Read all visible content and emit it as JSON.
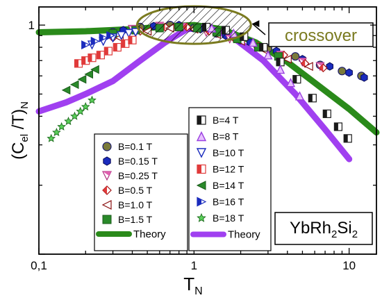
{
  "chart_data": {
    "type": "scatter",
    "xlabel": "T",
    "xlabel_sub": "N",
    "ylabel_parts": [
      "(C",
      "el",
      " /T)",
      "N"
    ],
    "x_scale": "log",
    "y_scale": "log",
    "xlim": [
      0.1,
      15
    ],
    "ylim": [
      0.1,
      1.2
    ],
    "x_ticks": [
      {
        "value": 0.1,
        "label": "0,1"
      },
      {
        "value": 1,
        "label": "1"
      },
      {
        "value": 10,
        "label": "10"
      }
    ],
    "y_ticks": [
      {
        "value": 1,
        "label": "1"
      }
    ],
    "annotation": {
      "text": "crossover",
      "color": "#7a7a1f"
    },
    "compound": {
      "parts": [
        "YbRh",
        "2",
        "Si",
        "2"
      ]
    },
    "legend_left": {
      "entries": [
        "B=0.1 T",
        "B=0.15 T",
        "B=0.25 T",
        "B=0.5 T",
        "B=1.0 T",
        "B=1.5 T"
      ],
      "theory_label": "Theory"
    },
    "legend_right": {
      "entries": [
        "B=4 T",
        "B=8 T",
        "B=10 T",
        "B=12 T",
        "B=14 T",
        "B=16 T",
        "B=18 T"
      ],
      "theory_label": "Theory"
    },
    "series": [
      {
        "name": "B=0.1 T",
        "marker": "circle",
        "color": "#7a7a3a",
        "stroke": "#1a1a6e",
        "x": [
          0.3,
          0.45,
          0.7,
          1.0,
          1.4,
          2.0,
          3.0,
          4.5,
          6.5,
          9.0,
          12.0
        ],
        "y": [
          0.93,
          0.98,
          1.0,
          0.97,
          0.92,
          0.86,
          0.79,
          0.73,
          0.67,
          0.63,
          0.6
        ]
      },
      {
        "name": "B=0.15 T",
        "marker": "hexagon",
        "color": "#1a2bbd",
        "stroke": "#0a0a55",
        "x": [
          0.35,
          0.55,
          0.8,
          1.1,
          1.6,
          2.3,
          3.4,
          5.0,
          7.5,
          10.0,
          12.5
        ],
        "y": [
          0.95,
          0.99,
          1.0,
          0.96,
          0.9,
          0.84,
          0.77,
          0.71,
          0.66,
          0.62,
          0.59
        ]
      },
      {
        "name": "B=0.25 T",
        "marker": "triangle-down-split",
        "color": "#e060b0",
        "stroke": "#b03080",
        "x": [
          0.4,
          0.6,
          0.85,
          1.2,
          1.7,
          2.5,
          3.6,
          5.0,
          6.5
        ],
        "y": [
          0.96,
          0.99,
          0.98,
          0.93,
          0.87,
          0.8,
          0.74,
          0.69,
          0.66
        ]
      },
      {
        "name": "B=0.5 T",
        "marker": "diamond-split",
        "color": "#e03a3a",
        "stroke": "#a01010",
        "x": [
          0.3,
          0.45,
          0.65,
          0.9,
          1.25,
          1.8,
          2.6,
          3.8,
          5.2,
          6.8
        ],
        "y": [
          0.88,
          0.94,
          0.98,
          0.98,
          0.94,
          0.88,
          0.81,
          0.74,
          0.68,
          0.65
        ]
      },
      {
        "name": "B=1.0 T",
        "marker": "triangle-left-open",
        "color": "#ffffff",
        "stroke": "#8a1010",
        "x": [
          0.33,
          0.5,
          0.7,
          1.0,
          1.4,
          2.0,
          2.8,
          4.0,
          5.5
        ],
        "y": [
          0.88,
          0.94,
          0.97,
          0.96,
          0.91,
          0.85,
          0.78,
          0.71,
          0.66
        ]
      },
      {
        "name": "B=1.5 T",
        "marker": "square",
        "color": "#2a8a2a",
        "stroke": "#1a5a1a",
        "x": [
          0.3,
          0.42,
          0.6,
          0.8,
          1.05,
          1.4,
          1.9,
          2.6,
          3.5
        ],
        "y": [
          0.92,
          0.95,
          0.97,
          0.98,
          0.97,
          0.93,
          0.87,
          0.8,
          0.73
        ]
      },
      {
        "name": "B=4 T",
        "marker": "square-split",
        "color": "#1a1a1a",
        "stroke": "#1a1a1a",
        "x": [
          1.2,
          1.6,
          2.1,
          2.8,
          3.6,
          4.6,
          5.8,
          7.2,
          8.5,
          9.8
        ],
        "y": [
          0.98,
          0.95,
          0.89,
          0.8,
          0.69,
          0.58,
          0.48,
          0.41,
          0.36,
          0.32
        ]
      },
      {
        "name": "B=8 T",
        "marker": "triangle-up-open",
        "color": "#e8c0ff",
        "stroke": "#9a40e0",
        "x": [
          1.3,
          1.8,
          2.4,
          3.0,
          3.6,
          4.2,
          4.8
        ],
        "y": [
          0.97,
          0.92,
          0.84,
          0.74,
          0.64,
          0.56,
          0.49
        ]
      },
      {
        "name": "B=10 T",
        "marker": "triangle-down-open",
        "color": "#ffffff",
        "stroke": "#1a2bbd",
        "x": [
          0.22,
          0.26,
          0.3,
          0.34,
          0.38,
          0.42
        ],
        "y": [
          0.82,
          0.85,
          0.88,
          0.9,
          0.92,
          0.93
        ]
      },
      {
        "name": "B=12 T",
        "marker": "square-split",
        "color": "#e03a3a",
        "stroke": "#e03a3a",
        "x": [
          0.18,
          0.2,
          0.22,
          0.25,
          0.28,
          0.32,
          0.36,
          0.4
        ],
        "y": [
          0.68,
          0.7,
          0.72,
          0.74,
          0.77,
          0.8,
          0.83,
          0.86
        ]
      },
      {
        "name": "B=14 T",
        "marker": "triangle-left",
        "color": "#2a8a2a",
        "stroke": "#1a5a1a",
        "x": [
          0.15,
          0.17,
          0.19,
          0.21,
          0.23
        ],
        "y": [
          0.52,
          0.55,
          0.58,
          0.61,
          0.64
        ]
      },
      {
        "name": "B=16 T",
        "marker": "triangle-right-split",
        "color": "#1a2bbd",
        "stroke": "#1a2bbd",
        "x": [
          0.2,
          0.23,
          0.26,
          0.29
        ],
        "y": [
          0.82,
          0.85,
          0.88,
          0.9
        ]
      },
      {
        "name": "B=18 T",
        "marker": "star",
        "color": "#5ad05a",
        "stroke": "#1a6a1a",
        "x": [
          0.12,
          0.13,
          0.14,
          0.155,
          0.17,
          0.185,
          0.2,
          0.22
        ],
        "y": [
          0.32,
          0.34,
          0.36,
          0.38,
          0.4,
          0.42,
          0.44,
          0.47
        ]
      }
    ],
    "theory_curves": [
      {
        "label": "Theory",
        "color": "#2a8a1a",
        "x": [
          0.1,
          0.2,
          0.4,
          0.7,
          1.0,
          1.5,
          2.5,
          4.0,
          6.0,
          10.0,
          15.0
        ],
        "y": [
          0.93,
          0.94,
          0.96,
          0.99,
          1.0,
          0.96,
          0.84,
          0.69,
          0.56,
          0.43,
          0.34
        ]
      },
      {
        "label": "Theory",
        "color": "#a040f0",
        "x": [
          0.1,
          0.15,
          0.2,
          0.3,
          0.45,
          0.65,
          0.9,
          1.2,
          1.8,
          2.8,
          4.5,
          7.0,
          10.0
        ],
        "y": [
          0.42,
          0.46,
          0.5,
          0.57,
          0.7,
          0.84,
          0.96,
          0.98,
          0.88,
          0.7,
          0.5,
          0.35,
          0.26
        ]
      }
    ]
  }
}
